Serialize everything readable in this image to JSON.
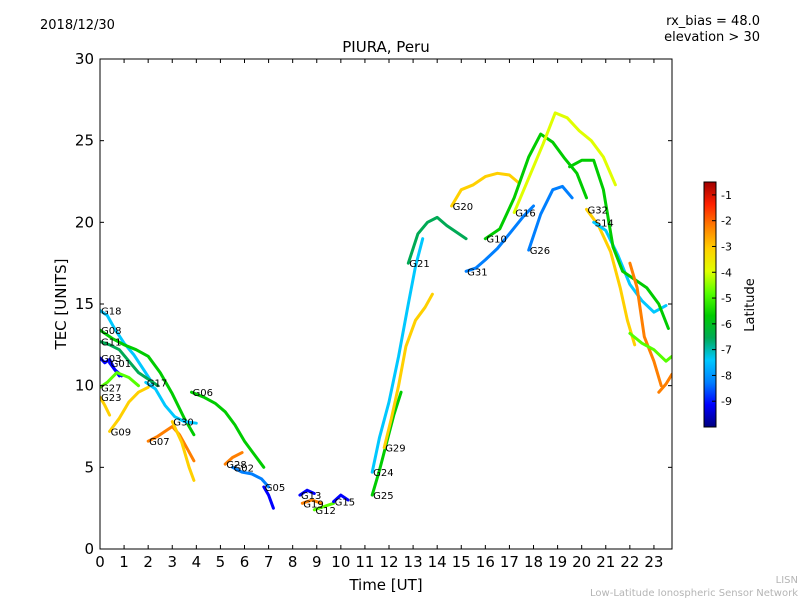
{
  "header": {
    "date": "2018/12/30",
    "rx_bias": "rx_bias = 48.0",
    "elevation": "elevation > 30"
  },
  "credits": {
    "line1": "LISN",
    "line2": "Low-Latitude Ionospheric Sensor Network"
  },
  "chart_data": {
    "type": "line",
    "title": "PIURA, Peru",
    "xlabel": "Time [UT]",
    "ylabel": "TEC [UNITS]",
    "xlim": [
      0,
      23.75
    ],
    "ylim": [
      0,
      30
    ],
    "x_ticks": [
      0,
      1,
      2,
      3,
      4,
      5,
      6,
      7,
      8,
      9,
      10,
      11,
      12,
      13,
      14,
      15,
      16,
      17,
      18,
      19,
      20,
      21,
      22,
      23
    ],
    "y_ticks": [
      0,
      5,
      10,
      15,
      20,
      25,
      30
    ],
    "grid": false,
    "colorbar": {
      "label": "Latitude",
      "range": [
        -10,
        -0.5
      ],
      "ticks": [
        -1,
        -2,
        -3,
        -4,
        -5,
        -6,
        -7,
        -8,
        -9
      ],
      "colormap": [
        "#00007f",
        "#0000ff",
        "#007fff",
        "#00c8ff",
        "#00aa55",
        "#00cc00",
        "#55ff00",
        "#e0ff00",
        "#ffd000",
        "#ff7f00",
        "#ff2000",
        "#a00000"
      ]
    },
    "series": [
      {
        "name": "G18",
        "lat": -7.8,
        "points": [
          [
            0,
            14.6
          ],
          [
            0.3,
            14.3
          ],
          [
            0.6,
            13.5
          ],
          [
            1.0,
            12.6
          ],
          [
            1.4,
            11.9
          ],
          [
            1.8,
            11.0
          ],
          [
            2.2,
            10.1
          ]
        ]
      },
      {
        "name": "G08",
        "lat": -5.5,
        "points": [
          [
            0,
            13.4
          ],
          [
            0.5,
            12.9
          ],
          [
            1.0,
            12.5
          ],
          [
            1.5,
            12.2
          ],
          [
            2.0,
            11.8
          ],
          [
            2.5,
            10.8
          ],
          [
            3.0,
            9.5
          ],
          [
            3.5,
            8.0
          ],
          [
            3.9,
            7.0
          ]
        ]
      },
      {
        "name": "G11",
        "lat": -6.5,
        "points": [
          [
            0,
            12.7
          ],
          [
            0.4,
            12.5
          ],
          [
            0.8,
            12.2
          ],
          [
            1.2,
            11.5
          ],
          [
            1.6,
            10.8
          ],
          [
            2.0,
            10.4
          ],
          [
            2.4,
            10.0
          ]
        ]
      },
      {
        "name": "G03",
        "lat": -8.8,
        "points": [
          [
            0,
            11.7
          ],
          [
            0.2,
            11.4
          ],
          [
            0.4,
            11.6
          ],
          [
            0.6,
            11.0
          ],
          [
            0.9,
            10.6
          ]
        ]
      },
      {
        "name": "G01",
        "lat": -9.5,
        "points": [
          [
            0.4,
            11.4
          ],
          [
            0.6,
            11.0
          ],
          [
            0.8,
            10.6
          ]
        ]
      },
      {
        "name": "G27",
        "lat": -5.0,
        "points": [
          [
            0,
            9.9
          ],
          [
            0.3,
            10.2
          ],
          [
            0.7,
            10.8
          ],
          [
            1.2,
            10.5
          ],
          [
            1.6,
            10.0
          ]
        ]
      },
      {
        "name": "G23",
        "lat": -3.5,
        "points": [
          [
            0,
            9.3
          ],
          [
            0.2,
            8.8
          ],
          [
            0.4,
            8.2
          ]
        ]
      },
      {
        "name": "G09",
        "lat": -3.5,
        "points": [
          [
            0.4,
            7.2
          ],
          [
            0.8,
            8.0
          ],
          [
            1.2,
            9.0
          ],
          [
            1.6,
            9.6
          ],
          [
            2.0,
            9.9
          ]
        ]
      },
      {
        "name": "G17",
        "lat": -7.0,
        "points": [
          [
            1.9,
            10.2
          ],
          [
            2.3,
            9.8
          ],
          [
            2.7,
            8.8
          ],
          [
            3.1,
            8.1
          ],
          [
            3.5,
            7.8
          ],
          [
            4.0,
            7.7
          ]
        ]
      },
      {
        "name": "G07",
        "lat": -2.0,
        "points": [
          [
            2.0,
            6.6
          ],
          [
            2.4,
            6.9
          ],
          [
            2.7,
            7.2
          ],
          [
            3.0,
            7.5
          ],
          [
            3.3,
            7.0
          ],
          [
            3.6,
            6.2
          ],
          [
            3.9,
            5.4
          ]
        ]
      },
      {
        "name": "G30",
        "lat": -3.5,
        "points": [
          [
            3.0,
            7.8
          ],
          [
            3.4,
            6.5
          ],
          [
            3.7,
            5.0
          ],
          [
            3.9,
            4.2
          ]
        ]
      },
      {
        "name": "G06",
        "lat": -6.0,
        "points": [
          [
            3.8,
            9.6
          ],
          [
            4.3,
            9.3
          ],
          [
            4.8,
            8.9
          ],
          [
            5.2,
            8.4
          ],
          [
            5.6,
            7.6
          ],
          [
            6.0,
            6.6
          ],
          [
            6.4,
            5.8
          ],
          [
            6.8,
            5.0
          ]
        ]
      },
      {
        "name": "G28",
        "lat": -2.5,
        "points": [
          [
            5.2,
            5.2
          ],
          [
            5.5,
            5.6
          ],
          [
            5.9,
            5.9
          ]
        ]
      },
      {
        "name": "G02",
        "lat": -8.0,
        "points": [
          [
            5.5,
            5.0
          ],
          [
            5.9,
            4.7
          ],
          [
            6.3,
            4.6
          ],
          [
            6.7,
            4.3
          ],
          [
            7.0,
            3.8
          ]
        ]
      },
      {
        "name": "G05",
        "lat": -9.0,
        "points": [
          [
            6.8,
            3.8
          ],
          [
            7.0,
            3.3
          ],
          [
            7.2,
            2.5
          ]
        ]
      },
      {
        "name": "G13",
        "lat": -8.8,
        "points": [
          [
            8.3,
            3.3
          ],
          [
            8.6,
            3.6
          ],
          [
            8.9,
            3.4
          ]
        ]
      },
      {
        "name": "G19",
        "lat": -2.5,
        "points": [
          [
            8.4,
            2.8
          ],
          [
            8.8,
            3.0
          ],
          [
            9.2,
            2.8
          ]
        ]
      },
      {
        "name": "G12",
        "lat": -5.0,
        "points": [
          [
            8.9,
            2.4
          ],
          [
            9.3,
            2.6
          ],
          [
            9.7,
            2.8
          ]
        ]
      },
      {
        "name": "G15",
        "lat": -9.0,
        "points": [
          [
            9.7,
            2.9
          ],
          [
            10.0,
            3.3
          ],
          [
            10.3,
            3.0
          ]
        ]
      },
      {
        "name": "G25",
        "lat": -5.5,
        "points": [
          [
            11.3,
            3.3
          ],
          [
            11.6,
            4.8
          ],
          [
            11.9,
            6.5
          ],
          [
            12.2,
            8.2
          ],
          [
            12.5,
            9.6
          ]
        ]
      },
      {
        "name": "G24",
        "lat": -7.0,
        "points": [
          [
            11.3,
            4.7
          ],
          [
            11.6,
            6.8
          ],
          [
            12.0,
            9.0
          ],
          [
            12.4,
            11.8
          ],
          [
            12.8,
            15.0
          ],
          [
            13.1,
            17.3
          ],
          [
            13.4,
            19.0
          ]
        ]
      },
      {
        "name": "G29",
        "lat": -3.0,
        "points": [
          [
            11.8,
            6.2
          ],
          [
            12.1,
            8.0
          ],
          [
            12.4,
            10.0
          ],
          [
            12.7,
            12.4
          ],
          [
            13.1,
            14.0
          ],
          [
            13.5,
            14.8
          ],
          [
            13.8,
            15.6
          ]
        ]
      },
      {
        "name": "G21",
        "lat": -6.5,
        "points": [
          [
            12.8,
            17.5
          ],
          [
            13.2,
            19.3
          ],
          [
            13.6,
            20.0
          ],
          [
            14.0,
            20.3
          ],
          [
            14.4,
            19.8
          ],
          [
            14.8,
            19.4
          ],
          [
            15.2,
            19.0
          ]
        ]
      },
      {
        "name": "G20",
        "lat": -3.0,
        "points": [
          [
            14.6,
            21.0
          ],
          [
            15.0,
            22.0
          ],
          [
            15.5,
            22.3
          ],
          [
            16.0,
            22.8
          ],
          [
            16.5,
            23.0
          ],
          [
            17.0,
            22.9
          ],
          [
            17.4,
            22.4
          ]
        ]
      },
      {
        "name": "G31",
        "lat": -8.0,
        "points": [
          [
            15.2,
            17.0
          ],
          [
            15.6,
            17.2
          ],
          [
            16.0,
            17.7
          ],
          [
            16.5,
            18.4
          ],
          [
            17.0,
            19.3
          ],
          [
            17.6,
            20.4
          ],
          [
            18.0,
            21.0
          ]
        ]
      },
      {
        "name": "G10",
        "lat": -6.0,
        "points": [
          [
            16.0,
            19.0
          ],
          [
            16.6,
            19.6
          ],
          [
            17.2,
            21.5
          ],
          [
            17.8,
            24.0
          ],
          [
            18.3,
            25.4
          ],
          [
            18.8,
            24.9
          ],
          [
            19.3,
            23.9
          ],
          [
            19.8,
            23.0
          ],
          [
            20.2,
            21.5
          ]
        ]
      },
      {
        "name": "G26",
        "lat": -8.5,
        "points": [
          [
            17.8,
            18.3
          ],
          [
            18.3,
            20.5
          ],
          [
            18.8,
            22.0
          ],
          [
            19.2,
            22.2
          ],
          [
            19.6,
            21.5
          ]
        ]
      },
      {
        "name": "G16",
        "lat": -4.0,
        "points": [
          [
            17.2,
            20.6
          ],
          [
            17.8,
            22.7
          ],
          [
            18.4,
            24.8
          ],
          [
            18.9,
            26.7
          ],
          [
            19.4,
            26.4
          ],
          [
            19.9,
            25.6
          ],
          [
            20.4,
            25.0
          ],
          [
            20.9,
            24.0
          ],
          [
            21.4,
            22.3
          ]
        ]
      },
      {
        "name": "G32",
        "lat": -3.0,
        "points": [
          [
            20.2,
            20.8
          ],
          [
            20.7,
            19.8
          ],
          [
            21.2,
            18.2
          ],
          [
            21.6,
            16.0
          ],
          [
            21.9,
            14.0
          ],
          [
            22.2,
            12.5
          ]
        ]
      },
      {
        "name": "S14",
        "lat": -7.5,
        "points": [
          [
            20.5,
            20.0
          ],
          [
            21.0,
            19.5
          ],
          [
            21.5,
            18.0
          ],
          [
            22.0,
            16.2
          ],
          [
            22.5,
            15.2
          ],
          [
            23.0,
            14.5
          ],
          [
            23.5,
            14.9
          ]
        ]
      },
      {
        "name": "",
        "lat": -5.5,
        "points": [
          [
            19.5,
            23.4
          ],
          [
            20.0,
            23.8
          ],
          [
            20.5,
            23.8
          ],
          [
            20.9,
            22.0
          ],
          [
            21.3,
            18.5
          ],
          [
            21.7,
            17.0
          ],
          [
            22.2,
            16.5
          ],
          [
            22.7,
            16.0
          ],
          [
            23.2,
            15.0
          ],
          [
            23.6,
            13.5
          ]
        ]
      },
      {
        "name": "",
        "lat": -1.8,
        "points": [
          [
            22.0,
            17.5
          ],
          [
            22.3,
            16.0
          ],
          [
            22.6,
            13.0
          ],
          [
            23.0,
            11.5
          ],
          [
            23.3,
            10.0
          ]
        ]
      },
      {
        "name": "",
        "lat": -4.5,
        "points": [
          [
            22.0,
            13.2
          ],
          [
            22.5,
            12.6
          ],
          [
            23.0,
            12.2
          ],
          [
            23.5,
            11.5
          ],
          [
            23.75,
            11.8
          ]
        ]
      },
      {
        "name": "",
        "lat": -2.5,
        "points": [
          [
            23.2,
            9.6
          ],
          [
            23.5,
            10.1
          ],
          [
            23.75,
            10.7
          ]
        ]
      }
    ]
  }
}
